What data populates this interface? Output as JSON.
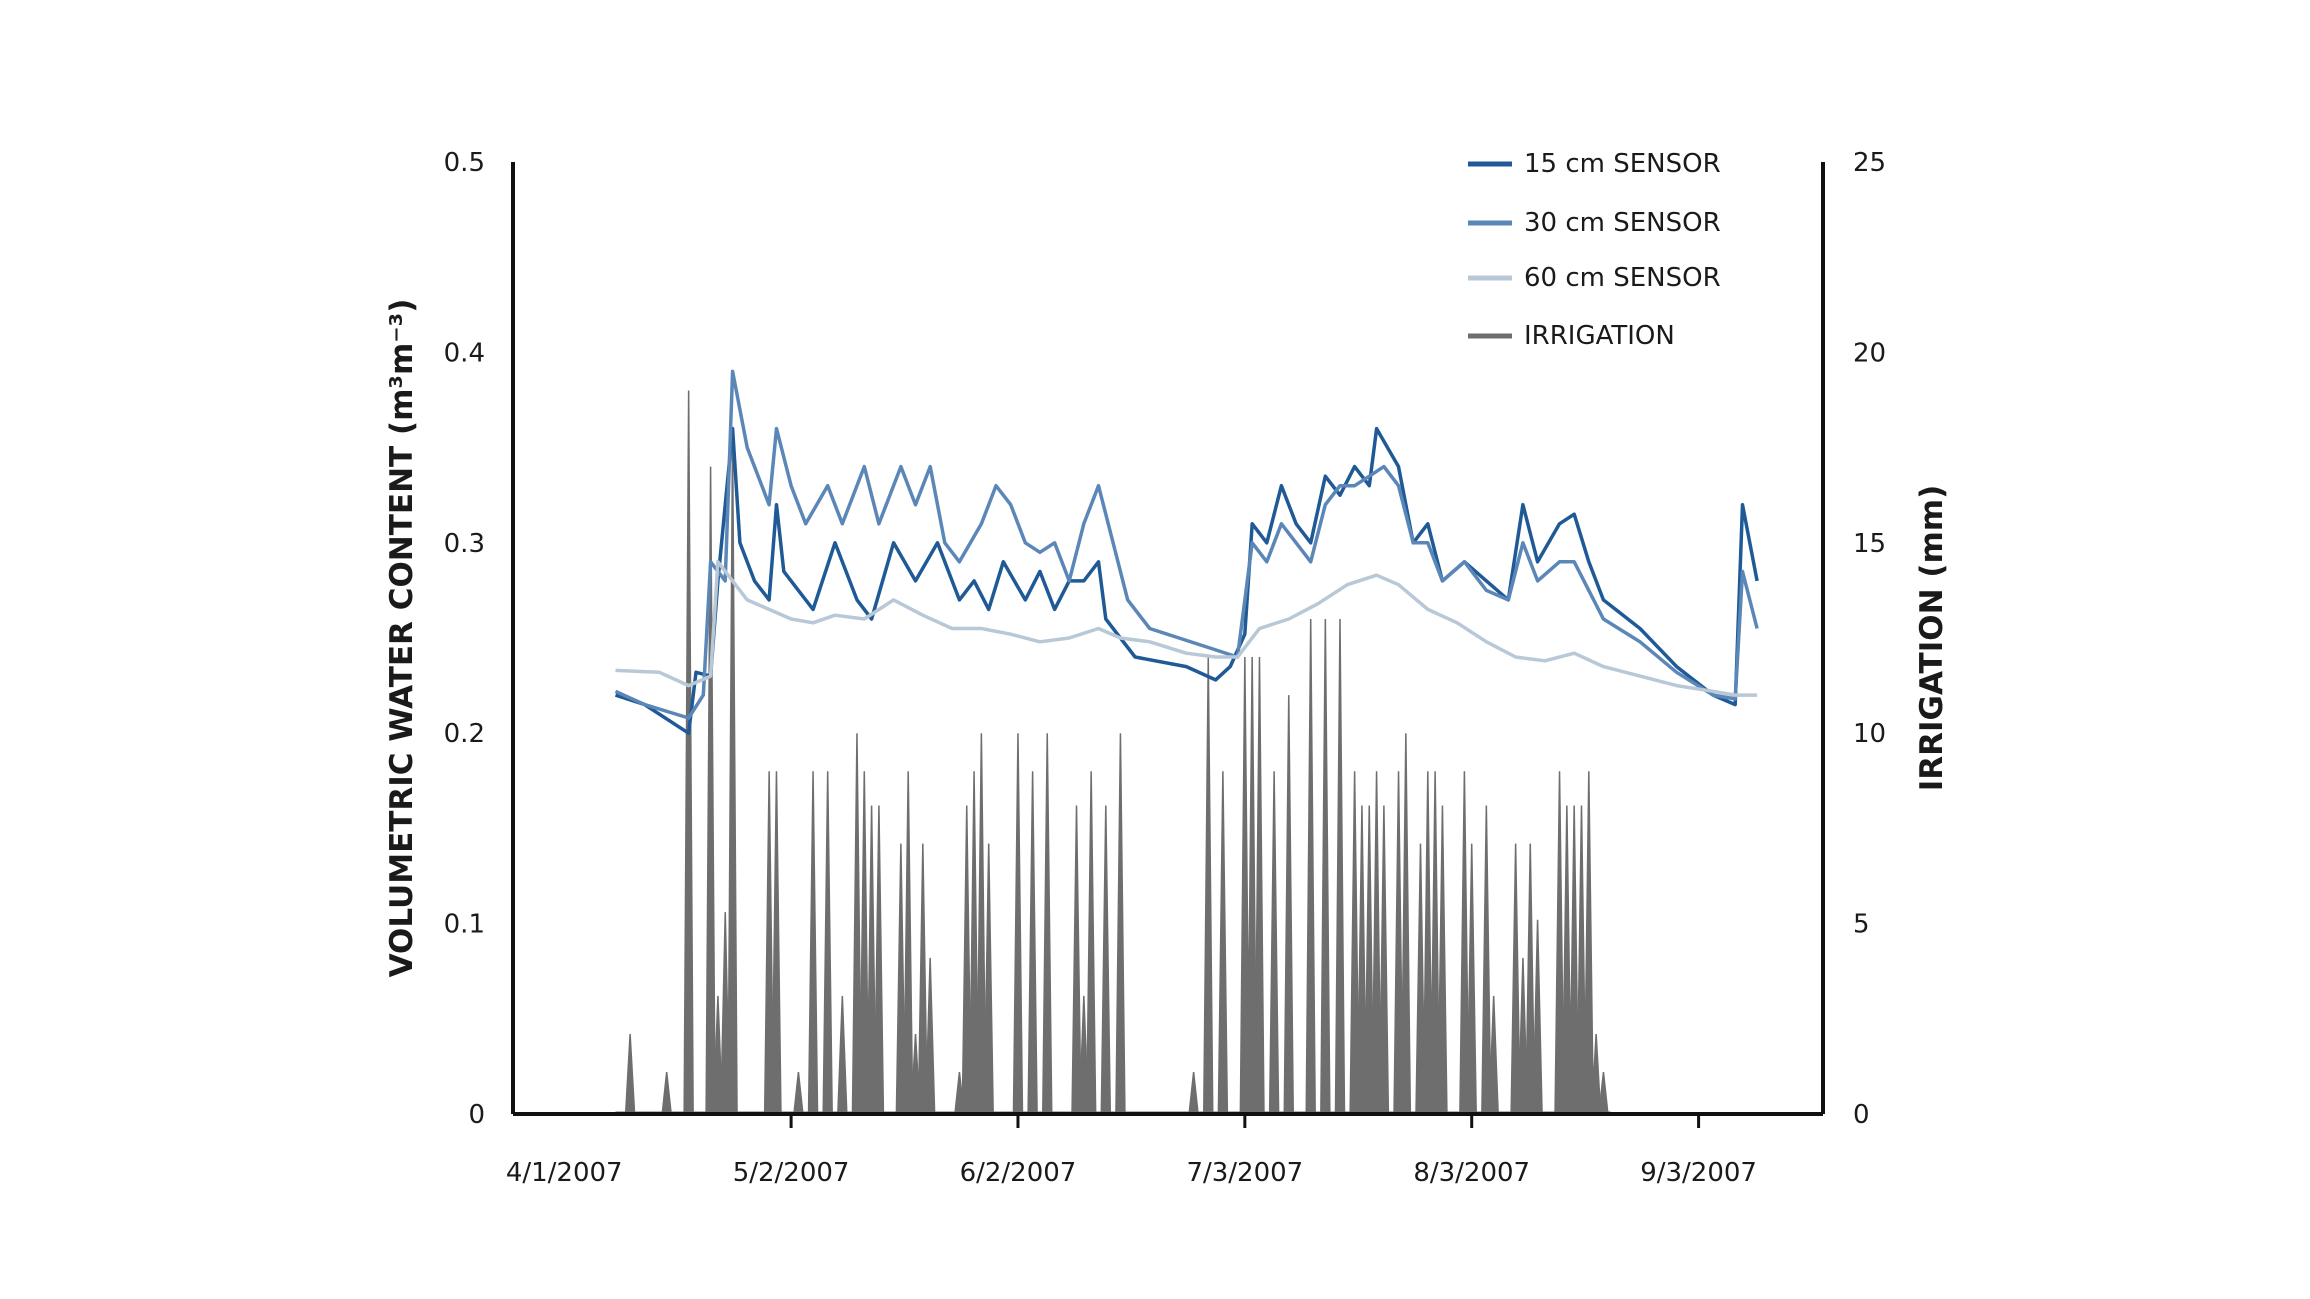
{
  "chart_data": {
    "type": "line",
    "title": "",
    "xlabel": "",
    "ylabel": "VOLUMETRIC WATER CONTENT (m³m⁻³)",
    "y2label": "IRRIGATION (mm)",
    "x_type": "date",
    "xlim": [
      "2007-03-25",
      "2007-09-20"
    ],
    "ylim": [
      0,
      0.5
    ],
    "y2lim": [
      0,
      25
    ],
    "x_tick_labels": [
      "4/1/2007",
      "5/2/2007",
      "6/2/2007",
      "7/3/2007",
      "8/3/2007",
      "9/3/2007"
    ],
    "x_ticks": [
      "2007-04-01",
      "2007-05-02",
      "2007-06-02",
      "2007-07-03",
      "2007-08-03",
      "2007-09-03"
    ],
    "y_tick_labels": [
      "0",
      "0.1",
      "0.2",
      "0.3",
      "0.4",
      "0.5"
    ],
    "y_ticks": [
      0,
      0.1,
      0.2,
      0.3,
      0.4,
      0.5
    ],
    "y2_tick_labels": [
      "0",
      "5",
      "10",
      "15",
      "20",
      "25"
    ],
    "y2_ticks": [
      0,
      5,
      10,
      15,
      20,
      25
    ],
    "grid": false,
    "legend_position": "top-right",
    "series": [
      {
        "name": "15 cm SENSOR",
        "axis": "left",
        "color": "#1f5a96",
        "points": [
          [
            "2007-04-08",
            0.22
          ],
          [
            "2007-04-12",
            0.215
          ],
          [
            "2007-04-18",
            0.2
          ],
          [
            "2007-04-19",
            0.232
          ],
          [
            "2007-04-21",
            0.23
          ],
          [
            "2007-04-22",
            0.28
          ],
          [
            "2007-04-24",
            0.36
          ],
          [
            "2007-04-25",
            0.3
          ],
          [
            "2007-04-27",
            0.28
          ],
          [
            "2007-04-29",
            0.27
          ],
          [
            "2007-04-30",
            0.32
          ],
          [
            "2007-05-01",
            0.285
          ],
          [
            "2007-05-03",
            0.275
          ],
          [
            "2007-05-05",
            0.265
          ],
          [
            "2007-05-08",
            0.3
          ],
          [
            "2007-05-11",
            0.27
          ],
          [
            "2007-05-13",
            0.26
          ],
          [
            "2007-05-16",
            0.3
          ],
          [
            "2007-05-19",
            0.28
          ],
          [
            "2007-05-22",
            0.3
          ],
          [
            "2007-05-25",
            0.27
          ],
          [
            "2007-05-27",
            0.28
          ],
          [
            "2007-05-29",
            0.265
          ],
          [
            "2007-05-31",
            0.29
          ],
          [
            "2007-06-03",
            0.27
          ],
          [
            "2007-06-05",
            0.285
          ],
          [
            "2007-06-07",
            0.265
          ],
          [
            "2007-06-09",
            0.28
          ],
          [
            "2007-06-11",
            0.28
          ],
          [
            "2007-06-13",
            0.29
          ],
          [
            "2007-06-14",
            0.26
          ],
          [
            "2007-06-16",
            0.25
          ],
          [
            "2007-06-18",
            0.24
          ],
          [
            "2007-06-25",
            0.235
          ],
          [
            "2007-06-29",
            0.228
          ],
          [
            "2007-07-01",
            0.235
          ],
          [
            "2007-07-03",
            0.252
          ],
          [
            "2007-07-04",
            0.31
          ],
          [
            "2007-07-06",
            0.3
          ],
          [
            "2007-07-08",
            0.33
          ],
          [
            "2007-07-10",
            0.31
          ],
          [
            "2007-07-12",
            0.3
          ],
          [
            "2007-07-14",
            0.335
          ],
          [
            "2007-07-16",
            0.325
          ],
          [
            "2007-07-18",
            0.34
          ],
          [
            "2007-07-20",
            0.33
          ],
          [
            "2007-07-21",
            0.36
          ],
          [
            "2007-07-24",
            0.34
          ],
          [
            "2007-07-26",
            0.3
          ],
          [
            "2007-07-28",
            0.31
          ],
          [
            "2007-07-30",
            0.28
          ],
          [
            "2007-08-02",
            0.29
          ],
          [
            "2007-08-05",
            0.28
          ],
          [
            "2007-08-08",
            0.27
          ],
          [
            "2007-08-10",
            0.32
          ],
          [
            "2007-08-12",
            0.29
          ],
          [
            "2007-08-15",
            0.31
          ],
          [
            "2007-08-17",
            0.315
          ],
          [
            "2007-08-19",
            0.29
          ],
          [
            "2007-08-21",
            0.27
          ],
          [
            "2007-08-26",
            0.255
          ],
          [
            "2007-08-31",
            0.235
          ],
          [
            "2007-09-05",
            0.22
          ],
          [
            "2007-09-08",
            0.215
          ],
          [
            "2007-09-09",
            0.32
          ],
          [
            "2007-09-10",
            0.3
          ],
          [
            "2007-09-11",
            0.28
          ]
        ]
      },
      {
        "name": "30 cm SENSOR",
        "axis": "left",
        "color": "#5b87b8",
        "points": [
          [
            "2007-04-08",
            0.222
          ],
          [
            "2007-04-12",
            0.215
          ],
          [
            "2007-04-18",
            0.208
          ],
          [
            "2007-04-20",
            0.22
          ],
          [
            "2007-04-21",
            0.29
          ],
          [
            "2007-04-23",
            0.28
          ],
          [
            "2007-04-24",
            0.39
          ],
          [
            "2007-04-26",
            0.35
          ],
          [
            "2007-04-29",
            0.32
          ],
          [
            "2007-04-30",
            0.36
          ],
          [
            "2007-05-02",
            0.33
          ],
          [
            "2007-05-04",
            0.31
          ],
          [
            "2007-05-07",
            0.33
          ],
          [
            "2007-05-09",
            0.31
          ],
          [
            "2007-05-12",
            0.34
          ],
          [
            "2007-05-14",
            0.31
          ],
          [
            "2007-05-17",
            0.34
          ],
          [
            "2007-05-19",
            0.32
          ],
          [
            "2007-05-21",
            0.34
          ],
          [
            "2007-05-23",
            0.3
          ],
          [
            "2007-05-25",
            0.29
          ],
          [
            "2007-05-28",
            0.31
          ],
          [
            "2007-05-30",
            0.33
          ],
          [
            "2007-06-01",
            0.32
          ],
          [
            "2007-06-03",
            0.3
          ],
          [
            "2007-06-05",
            0.295
          ],
          [
            "2007-06-07",
            0.3
          ],
          [
            "2007-06-09",
            0.28
          ],
          [
            "2007-06-11",
            0.31
          ],
          [
            "2007-06-13",
            0.33
          ],
          [
            "2007-06-15",
            0.3
          ],
          [
            "2007-06-17",
            0.27
          ],
          [
            "2007-06-20",
            0.255
          ],
          [
            "2007-06-24",
            0.25
          ],
          [
            "2007-06-28",
            0.245
          ],
          [
            "2007-07-02",
            0.24
          ],
          [
            "2007-07-04",
            0.3
          ],
          [
            "2007-07-06",
            0.29
          ],
          [
            "2007-07-08",
            0.31
          ],
          [
            "2007-07-10",
            0.3
          ],
          [
            "2007-07-12",
            0.29
          ],
          [
            "2007-07-14",
            0.32
          ],
          [
            "2007-07-16",
            0.33
          ],
          [
            "2007-07-18",
            0.33
          ],
          [
            "2007-07-20",
            0.335
          ],
          [
            "2007-07-22",
            0.34
          ],
          [
            "2007-07-24",
            0.33
          ],
          [
            "2007-07-26",
            0.3
          ],
          [
            "2007-07-28",
            0.3
          ],
          [
            "2007-07-30",
            0.28
          ],
          [
            "2007-08-02",
            0.29
          ],
          [
            "2007-08-05",
            0.275
          ],
          [
            "2007-08-08",
            0.27
          ],
          [
            "2007-08-10",
            0.3
          ],
          [
            "2007-08-12",
            0.28
          ],
          [
            "2007-08-15",
            0.29
          ],
          [
            "2007-08-17",
            0.29
          ],
          [
            "2007-08-19",
            0.275
          ],
          [
            "2007-08-21",
            0.26
          ],
          [
            "2007-08-26",
            0.248
          ],
          [
            "2007-08-31",
            0.232
          ],
          [
            "2007-09-05",
            0.22
          ],
          [
            "2007-09-08",
            0.218
          ],
          [
            "2007-09-09",
            0.285
          ],
          [
            "2007-09-10",
            0.27
          ],
          [
            "2007-09-11",
            0.255
          ]
        ]
      },
      {
        "name": "60 cm SENSOR",
        "axis": "left",
        "color": "#b8c8d6",
        "points": [
          [
            "2007-04-08",
            0.233
          ],
          [
            "2007-04-14",
            0.232
          ],
          [
            "2007-04-18",
            0.225
          ],
          [
            "2007-04-21",
            0.23
          ],
          [
            "2007-04-22",
            0.29
          ],
          [
            "2007-04-24",
            0.28
          ],
          [
            "2007-04-26",
            0.27
          ],
          [
            "2007-04-29",
            0.265
          ],
          [
            "2007-05-02",
            0.26
          ],
          [
            "2007-05-05",
            0.258
          ],
          [
            "2007-05-08",
            0.262
          ],
          [
            "2007-05-12",
            0.26
          ],
          [
            "2007-05-16",
            0.27
          ],
          [
            "2007-05-20",
            0.262
          ],
          [
            "2007-05-24",
            0.255
          ],
          [
            "2007-05-28",
            0.255
          ],
          [
            "2007-06-01",
            0.252
          ],
          [
            "2007-06-05",
            0.248
          ],
          [
            "2007-06-09",
            0.25
          ],
          [
            "2007-06-13",
            0.255
          ],
          [
            "2007-06-16",
            0.25
          ],
          [
            "2007-06-20",
            0.248
          ],
          [
            "2007-06-25",
            0.242
          ],
          [
            "2007-06-29",
            0.24
          ],
          [
            "2007-07-02",
            0.24
          ],
          [
            "2007-07-05",
            0.255
          ],
          [
            "2007-07-09",
            0.26
          ],
          [
            "2007-07-13",
            0.268
          ],
          [
            "2007-07-17",
            0.278
          ],
          [
            "2007-07-21",
            0.283
          ],
          [
            "2007-07-24",
            0.278
          ],
          [
            "2007-07-28",
            0.265
          ],
          [
            "2007-08-01",
            0.258
          ],
          [
            "2007-08-05",
            0.248
          ],
          [
            "2007-08-09",
            0.24
          ],
          [
            "2007-08-13",
            0.238
          ],
          [
            "2007-08-17",
            0.242
          ],
          [
            "2007-08-21",
            0.235
          ],
          [
            "2007-08-26",
            0.23
          ],
          [
            "2007-08-31",
            0.225
          ],
          [
            "2007-09-05",
            0.222
          ],
          [
            "2007-09-08",
            0.22
          ],
          [
            "2007-09-11",
            0.22
          ]
        ]
      },
      {
        "name": "IRRIGATION",
        "axis": "right",
        "color": "#6e6e6e",
        "events": [
          [
            "2007-04-10",
            2.1
          ],
          [
            "2007-04-15",
            1.1
          ],
          [
            "2007-04-18",
            19
          ],
          [
            "2007-04-21",
            17
          ],
          [
            "2007-04-22",
            3.1
          ],
          [
            "2007-04-23",
            5.3
          ],
          [
            "2007-04-24",
            18
          ],
          [
            "2007-04-29",
            9
          ],
          [
            "2007-04-30",
            9
          ],
          [
            "2007-05-03",
            1.1
          ],
          [
            "2007-05-05",
            9
          ],
          [
            "2007-05-07",
            9
          ],
          [
            "2007-05-09",
            3.1
          ],
          [
            "2007-05-11",
            10
          ],
          [
            "2007-05-12",
            9
          ],
          [
            "2007-05-13",
            8.1
          ],
          [
            "2007-05-14",
            8.1
          ],
          [
            "2007-05-17",
            7.1
          ],
          [
            "2007-05-18",
            9
          ],
          [
            "2007-05-19",
            2.1
          ],
          [
            "2007-05-20",
            7.1
          ],
          [
            "2007-05-21",
            4.1
          ],
          [
            "2007-05-25",
            1.1
          ],
          [
            "2007-05-26",
            8.1
          ],
          [
            "2007-05-27",
            9
          ],
          [
            "2007-05-28",
            10
          ],
          [
            "2007-05-29",
            7.1
          ],
          [
            "2007-06-02",
            10
          ],
          [
            "2007-06-04",
            9
          ],
          [
            "2007-06-06",
            10
          ],
          [
            "2007-06-10",
            8.1
          ],
          [
            "2007-06-11",
            3.1
          ],
          [
            "2007-06-12",
            9
          ],
          [
            "2007-06-14",
            8.1
          ],
          [
            "2007-06-16",
            10
          ],
          [
            "2007-06-26",
            1.1
          ],
          [
            "2007-06-28",
            12
          ],
          [
            "2007-06-30",
            9
          ],
          [
            "2007-07-03",
            12
          ],
          [
            "2007-07-04",
            12
          ],
          [
            "2007-07-05",
            12
          ],
          [
            "2007-07-07",
            9
          ],
          [
            "2007-07-09",
            11
          ],
          [
            "2007-07-12",
            13
          ],
          [
            "2007-07-14",
            13
          ],
          [
            "2007-07-16",
            13
          ],
          [
            "2007-07-18",
            9
          ],
          [
            "2007-07-19",
            8.1
          ],
          [
            "2007-07-20",
            8.1
          ],
          [
            "2007-07-21",
            9
          ],
          [
            "2007-07-22",
            8.1
          ],
          [
            "2007-07-24",
            9
          ],
          [
            "2007-07-25",
            10
          ],
          [
            "2007-07-27",
            7.1
          ],
          [
            "2007-07-28",
            9
          ],
          [
            "2007-07-29",
            9
          ],
          [
            "2007-07-30",
            8.1
          ],
          [
            "2007-08-02",
            9
          ],
          [
            "2007-08-03",
            7.1
          ],
          [
            "2007-08-05",
            8.1
          ],
          [
            "2007-08-06",
            3.1
          ],
          [
            "2007-08-09",
            7.1
          ],
          [
            "2007-08-10",
            4.1
          ],
          [
            "2007-08-11",
            7.1
          ],
          [
            "2007-08-12",
            5.1
          ],
          [
            "2007-08-15",
            9
          ],
          [
            "2007-08-16",
            8.1
          ],
          [
            "2007-08-17",
            8.1
          ],
          [
            "2007-08-18",
            8.1
          ],
          [
            "2007-08-19",
            9
          ],
          [
            "2007-08-20",
            2.1
          ],
          [
            "2007-08-21",
            1.1
          ]
        ]
      }
    ]
  }
}
